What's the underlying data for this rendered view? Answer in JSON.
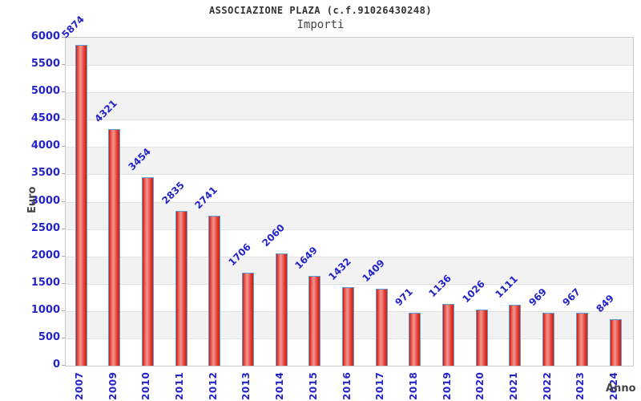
{
  "header": {
    "title": "ASSOCIAZIONE PLAZA (c.f.91026430248)",
    "subtitle": "Importi"
  },
  "chart_data": {
    "type": "bar",
    "title": "ASSOCIAZIONE PLAZA (c.f.91026430248)",
    "subtitle": "Importi",
    "xlabel": "Anno",
    "ylabel": "Euro",
    "categories": [
      "2007",
      "2009",
      "2010",
      "2011",
      "2012",
      "2013",
      "2014",
      "2015",
      "2016",
      "2017",
      "2018",
      "2019",
      "2020",
      "2021",
      "2022",
      "2023",
      "2024"
    ],
    "values": [
      5874,
      4321,
      3454,
      2835,
      2741,
      1706,
      2060,
      1649,
      1432,
      1409,
      971,
      1136,
      1026,
      1111,
      969,
      967,
      849
    ],
    "ylim": [
      0,
      6000
    ],
    "ytick_step": 500,
    "ytick_labels": [
      "0",
      "500",
      "1000",
      "1500",
      "2000",
      "2500",
      "3000",
      "3500",
      "4000",
      "4500",
      "5000",
      "5500",
      "6000"
    ],
    "legend": "none",
    "grid": "horizontal-bands-alternating",
    "colors": {
      "bar_fill": "#e23a30",
      "bar_highlight": "#ef8f88",
      "bar_border": "#5b9fd6",
      "value_label": "#2424c8",
      "tick_label": "#2424c8",
      "axis_title": "#444444",
      "band_gray": "#f2f2f2",
      "band_white": "#ffffff",
      "grid_line": "#e2e2e2",
      "plot_border": "#c8c8c8",
      "title_text": "#333333"
    }
  }
}
